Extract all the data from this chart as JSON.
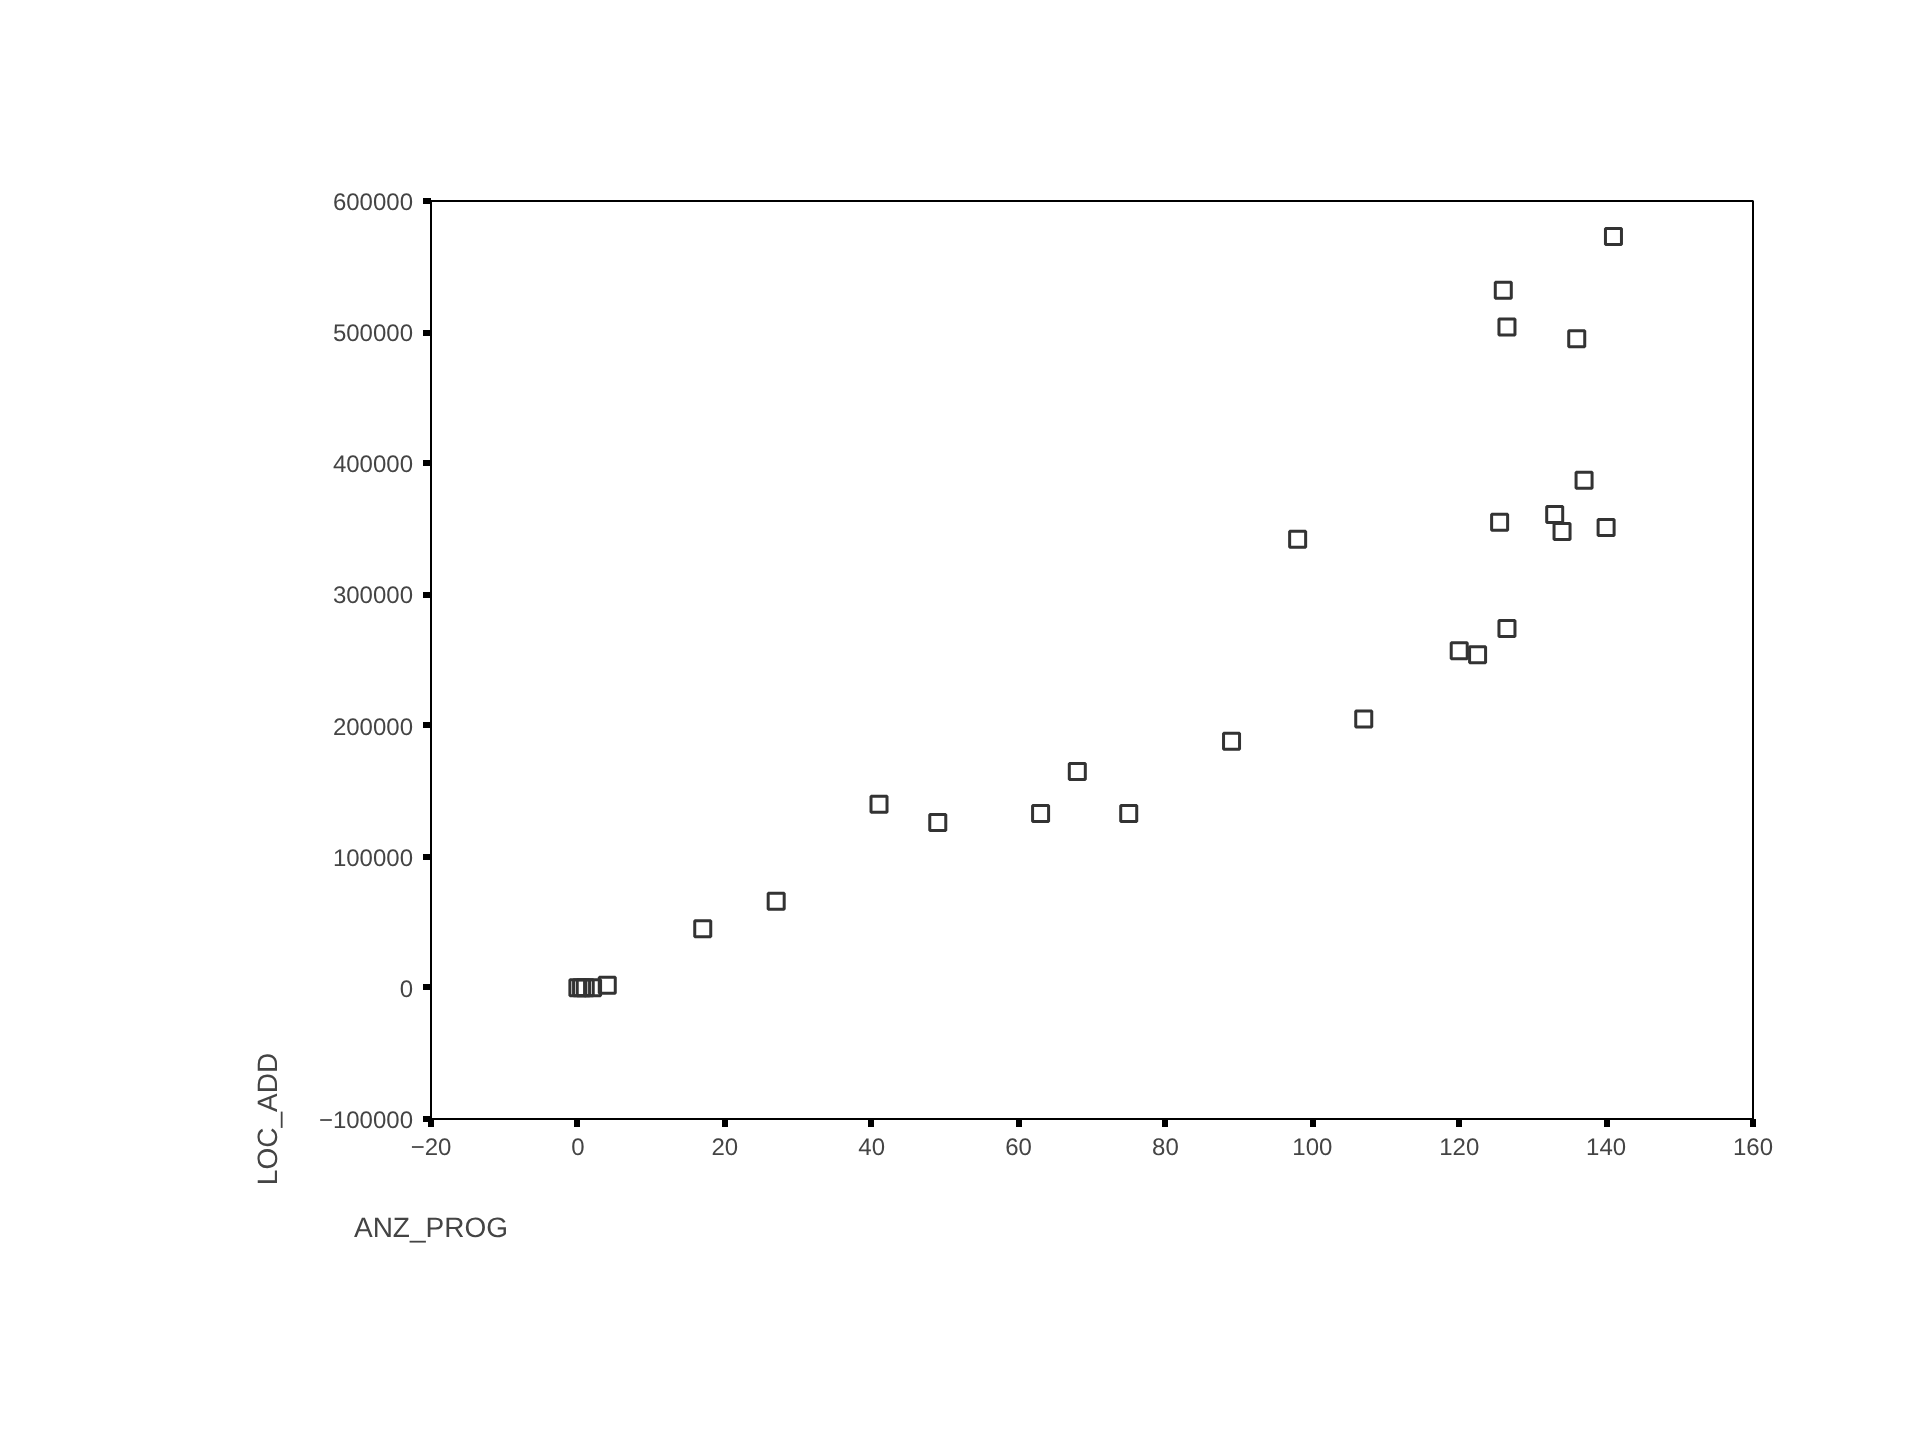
{
  "chart_data": {
    "type": "scatter",
    "xlabel": "ANZ_PROG",
    "ylabel": "LOC_ADD",
    "x": [
      0,
      0.5,
      1,
      2,
      4,
      17,
      27,
      41,
      49,
      63,
      68,
      75,
      89,
      98,
      107,
      120,
      122.5,
      126.5,
      125.5,
      126,
      126.5,
      136,
      137,
      133,
      134,
      140,
      141
    ],
    "series": [
      {
        "color": "#333333",
        "values": [
          0,
          0,
          0,
          0,
          2000,
          45000,
          66000,
          140000,
          126000,
          133000,
          165000,
          133000,
          188000,
          342000,
          205000,
          257000,
          254000,
          274000,
          355000,
          532000,
          504000,
          495000,
          387000,
          361000,
          348000,
          351000,
          573000
        ]
      }
    ],
    "xlim": [
      -20,
      160
    ],
    "xticks": [
      -20,
      0,
      20,
      40,
      60,
      80,
      100,
      120,
      140,
      160
    ],
    "ylim": [
      -100000,
      600000
    ],
    "yticks": [
      -100000,
      0,
      100000,
      200000,
      300000,
      400000,
      500000,
      600000
    ],
    "marker": "square",
    "grid": false
  }
}
